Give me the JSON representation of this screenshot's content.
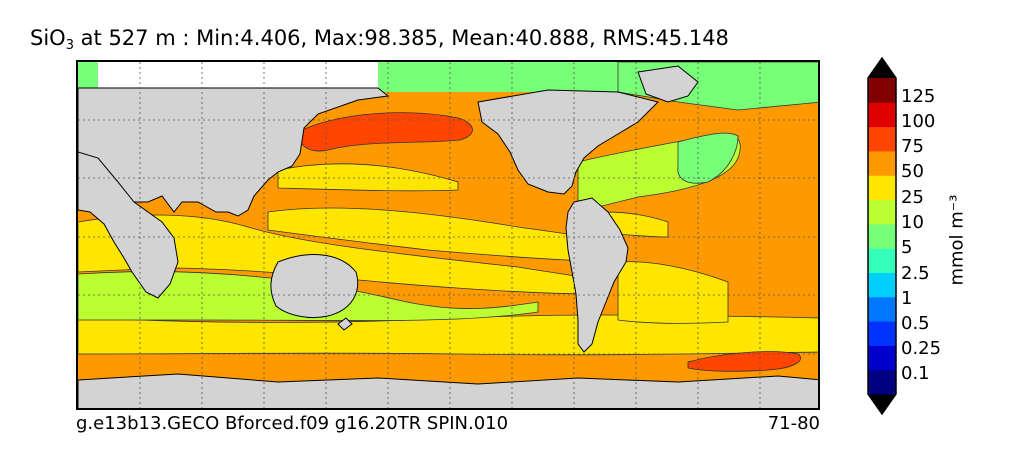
{
  "title": {
    "var": "SiO",
    "sub": "3",
    "rest": " at 527 m : Min:4.406, Max:98.385, Mean:40.888, RMS:45.148"
  },
  "footer": {
    "run": "g.e13b13.GECO Bforced.f09 g16.20TR SPIN.010",
    "years": "71-80"
  },
  "colorbar": {
    "units": "mmol m⁻³",
    "tick_labels": [
      "0.1",
      "0.25",
      "0.5",
      "1",
      "2.5",
      "5",
      "10",
      "25",
      "50",
      "75",
      "100",
      "125"
    ],
    "colors": [
      "#000080",
      "#0000cd",
      "#0033ff",
      "#0077ff",
      "#00d0ff",
      "#33ffbb",
      "#77ff77",
      "#bbff33",
      "#ffe600",
      "#ff9900",
      "#ff4500",
      "#e00000",
      "#800000"
    ],
    "extend": "both"
  },
  "colors": {
    "land": "#d3d3d3",
    "missing": "#ffffff",
    "contour": "#333333",
    "grid": "#555555"
  }
}
